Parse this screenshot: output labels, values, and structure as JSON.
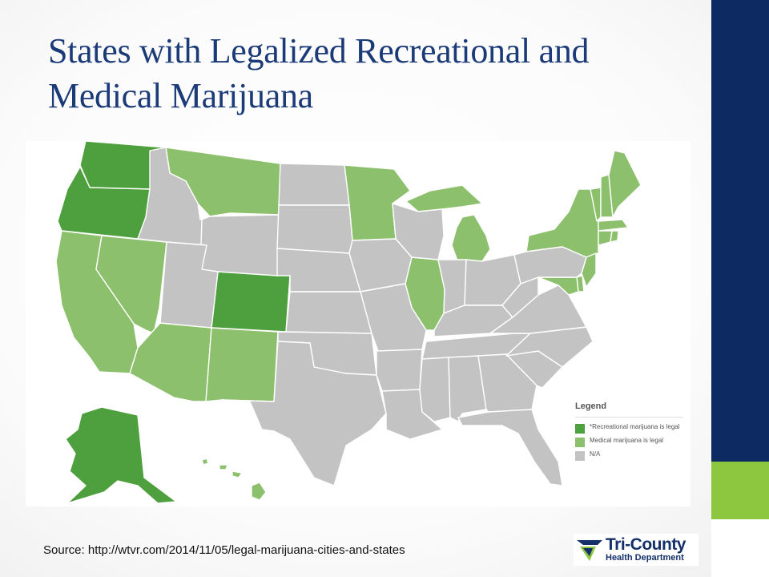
{
  "title": "States with Legalized Recreational and Medical Marijuana",
  "legend": {
    "title": "Legend",
    "items": [
      {
        "label": "*Recreational marijuana is legal",
        "color": "#4e9f3d"
      },
      {
        "label": "Medical marijuana is legal",
        "color": "#8dc06c"
      },
      {
        "label": "N/A",
        "color": "#c3c3c3"
      }
    ]
  },
  "colors": {
    "recreational": "#4e9f3d",
    "medical": "#8dc06c",
    "none": "#c3c3c3",
    "border": "#ffffff",
    "navy": "#0d2a63",
    "accent_green": "#8dc63f"
  },
  "states": {
    "recreational": [
      "Washington",
      "Oregon",
      "Colorado",
      "Alaska"
    ],
    "medical": [
      "California",
      "Nevada",
      "Arizona",
      "New Mexico",
      "Montana",
      "Minnesota",
      "Illinois",
      "Michigan",
      "New York",
      "Vermont",
      "New Hampshire",
      "Maine",
      "Massachusetts",
      "Rhode Island",
      "Connecticut",
      "New Jersey",
      "Delaware",
      "Maryland",
      "Hawaii"
    ]
  },
  "source": "Source: http://wtvr.com/2014/11/05/legal-marijuana-cities-and-states",
  "logo": {
    "name": "Tri-County",
    "subtitle": "Health Department",
    "icon": "tri-county-logo-icon"
  }
}
